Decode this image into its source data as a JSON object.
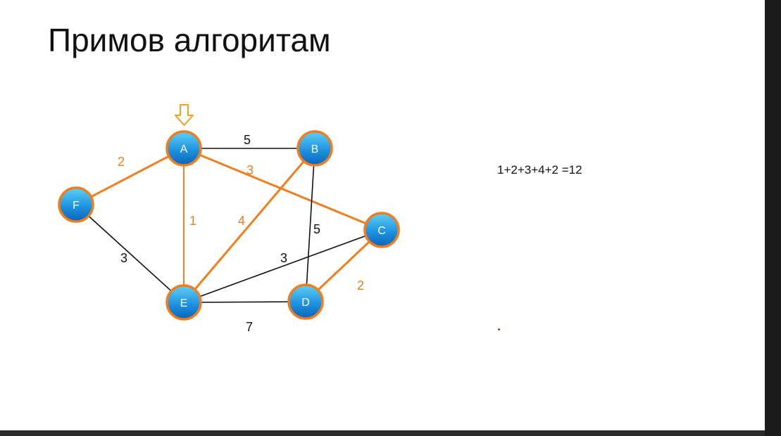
{
  "slide": {
    "title": "Примов алгоритам",
    "formula": "1+2+3+4+2 =12"
  },
  "colors": {
    "mst_edge": "#f07d1e",
    "other_edge": "#111111",
    "node_fill_top": "#48c2f0",
    "node_fill_bottom": "#0a6fc6",
    "node_border": "#f07d1e",
    "arrow": "#f0a21e",
    "label_orange": "#f07d1e",
    "label_dark": "#111111"
  },
  "graph": {
    "start_node": "A",
    "start_icon": "down-arrow-icon",
    "nodes": [
      {
        "id": "A",
        "label": "A"
      },
      {
        "id": "B",
        "label": "B"
      },
      {
        "id": "C",
        "label": "C"
      },
      {
        "id": "D",
        "label": "D"
      },
      {
        "id": "E",
        "label": "E"
      },
      {
        "id": "F",
        "label": "F"
      }
    ],
    "edges": [
      {
        "from": "A",
        "to": "B",
        "weight": "5",
        "in_mst": false
      },
      {
        "from": "A",
        "to": "F",
        "weight": "2",
        "in_mst": true
      },
      {
        "from": "A",
        "to": "C",
        "weight": "3",
        "in_mst": true
      },
      {
        "from": "A",
        "to": "E",
        "weight": "1",
        "in_mst": true
      },
      {
        "from": "B",
        "to": "E",
        "weight": "4",
        "in_mst": true
      },
      {
        "from": "B",
        "to": "D",
        "weight": "5",
        "in_mst": false
      },
      {
        "from": "F",
        "to": "E",
        "weight": "3",
        "in_mst": false
      },
      {
        "from": "E",
        "to": "C",
        "weight": "3",
        "in_mst": false
      },
      {
        "from": "E",
        "to": "D",
        "weight": "7",
        "in_mst": false
      },
      {
        "from": "C",
        "to": "D",
        "weight": "2",
        "in_mst": true
      }
    ]
  }
}
